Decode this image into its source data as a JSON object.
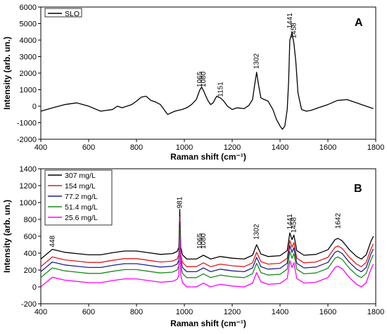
{
  "chart_data": [
    {
      "type": "line",
      "panel_label": "A",
      "xlabel": "Raman shift (cm⁻¹)",
      "ylabel": "Intensity (arb. un.)",
      "xlim": [
        400,
        1800
      ],
      "ylim": [
        -2000,
        6000
      ],
      "xticks": [
        "400",
        "600",
        "800",
        "1000",
        "1200",
        "1400",
        "1600",
        "1800"
      ],
      "yticks": [
        "-2000",
        "-1000",
        "0",
        "1000",
        "2000",
        "3000",
        "4000",
        "5000",
        "6000"
      ],
      "legend": {
        "position": "top-left",
        "entries": [
          "SLO"
        ]
      },
      "peak_labels": [
        {
          "text": "1065",
          "x": 1065,
          "y": 1150
        },
        {
          "text": "1080",
          "x": 1080,
          "y": 1150
        },
        {
          "text": "1151",
          "x": 1151,
          "y": 560
        },
        {
          "text": "1302",
          "x": 1302,
          "y": 2250
        },
        {
          "text": "1441",
          "x": 1441,
          "y": 4700
        },
        {
          "text": "1458",
          "x": 1458,
          "y": 4100
        }
      ],
      "series": [
        {
          "name": "SLO",
          "color": "#000000",
          "x": [
            400,
            450,
            500,
            550,
            600,
            650,
            700,
            720,
            740,
            760,
            780,
            800,
            820,
            840,
            860,
            880,
            900,
            930,
            960,
            990,
            1010,
            1030,
            1050,
            1065,
            1072,
            1080,
            1090,
            1100,
            1110,
            1120,
            1135,
            1151,
            1165,
            1180,
            1200,
            1220,
            1250,
            1270,
            1285,
            1295,
            1302,
            1310,
            1320,
            1335,
            1350,
            1370,
            1385,
            1400,
            1410,
            1420,
            1430,
            1436,
            1441,
            1450,
            1458,
            1466,
            1475,
            1490,
            1510,
            1530,
            1560,
            1600,
            1640,
            1680,
            1720,
            1760,
            1790
          ],
          "y": [
            -300,
            -100,
            100,
            200,
            0,
            -300,
            -200,
            0,
            -100,
            0,
            100,
            300,
            550,
            600,
            350,
            250,
            100,
            -500,
            -300,
            -200,
            -100,
            100,
            400,
            1000,
            1150,
            950,
            600,
            300,
            100,
            200,
            600,
            500,
            300,
            0,
            -200,
            -100,
            -150,
            50,
            400,
            1400,
            2050,
            1300,
            500,
            400,
            300,
            -200,
            -800,
            -1200,
            -1400,
            -1200,
            -200,
            1500,
            4000,
            4450,
            3800,
            2700,
            800,
            -200,
            -300,
            -250,
            -100,
            100,
            350,
            400,
            200,
            0,
            -150
          ]
        }
      ]
    },
    {
      "type": "line",
      "panel_label": "B",
      "xlabel": "Raman shift (cm⁻¹)",
      "ylabel": "Intensity (arb. un.)",
      "xlim": [
        400,
        1800
      ],
      "ylim": [
        -200,
        1400
      ],
      "xticks": [
        "400",
        "600",
        "800",
        "1000",
        "1200",
        "1400",
        "1600",
        "1800"
      ],
      "yticks": [
        "-200",
        "0",
        "200",
        "400",
        "600",
        "800",
        "1000",
        "1200",
        "1400"
      ],
      "legend": {
        "position": "top-left",
        "entries": [
          "307 mg/L",
          "154 mg/L",
          "77.2 mg/L",
          "51.4 mg/L",
          "25.6 mg/L"
        ]
      },
      "peak_labels": [
        {
          "text": "448",
          "x": 448,
          "y": 470
        },
        {
          "text": "981",
          "x": 981,
          "y": 930
        },
        {
          "text": "1065",
          "x": 1065,
          "y": 450
        },
        {
          "text": "1080",
          "x": 1080,
          "y": 450
        },
        {
          "text": "1302",
          "x": 1302,
          "y": 560
        },
        {
          "text": "1441",
          "x": 1441,
          "y": 680
        },
        {
          "text": "1458",
          "x": 1458,
          "y": 640
        },
        {
          "text": "1642",
          "x": 1642,
          "y": 690
        }
      ],
      "x": [
        400,
        448,
        500,
        550,
        600,
        650,
        700,
        750,
        800,
        850,
        900,
        950,
        970,
        977,
        981,
        985,
        992,
        1010,
        1050,
        1080,
        1110,
        1150,
        1200,
        1250,
        1285,
        1302,
        1320,
        1350,
        1400,
        1430,
        1441,
        1450,
        1458,
        1470,
        1500,
        1550,
        1600,
        1630,
        1642,
        1660,
        1690,
        1720,
        1740,
        1760,
        1780,
        1790
      ],
      "base_shape": [
        330,
        445,
        410,
        395,
        380,
        380,
        405,
        425,
        425,
        405,
        385,
        395,
        420,
        470,
        920,
        470,
        380,
        330,
        330,
        375,
        330,
        360,
        340,
        330,
        375,
        500,
        390,
        360,
        370,
        430,
        640,
        560,
        615,
        430,
        375,
        385,
        440,
        560,
        575,
        545,
        440,
        360,
        330,
        380,
        540,
        600
      ],
      "series": [
        {
          "name": "307 mg/L",
          "color": "#000000",
          "offset": 0
        },
        {
          "name": "154 mg/L",
          "color": "#e41a1c",
          "offset": -90
        },
        {
          "name": "77.2 mg/L",
          "color": "#1f1f8f",
          "offset": -150
        },
        {
          "name": "51.4 mg/L",
          "color": "#1a8a1a",
          "offset": -220
        },
        {
          "name": "25.6 mg/L",
          "color": "#ff00ff",
          "offset": -330
        }
      ]
    }
  ]
}
